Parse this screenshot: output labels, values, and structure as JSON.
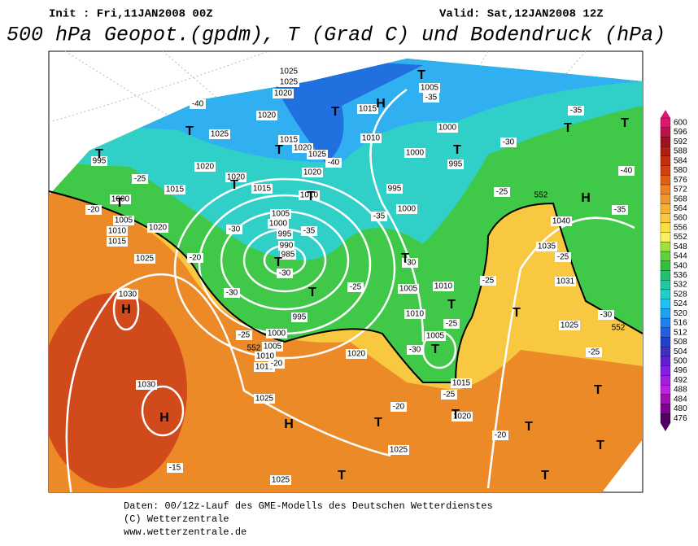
{
  "header": {
    "init": "Init : Fri,11JAN2008 00Z",
    "valid": "Valid: Sat,12JAN2008 12Z",
    "title": "500 hPa Geopot.(gpdm), T (Grad C) und Bodendruck (hPa)"
  },
  "footer": [
    "Daten: 00/12z-Lauf des GME-Modells des Deutschen Wetterdienstes",
    "(C) Wetterzentrale",
    "www.wetterzentrale.de"
  ],
  "colorbar": {
    "ticks": [
      600,
      596,
      592,
      588,
      584,
      580,
      576,
      572,
      568,
      564,
      560,
      556,
      552,
      548,
      544,
      540,
      536,
      532,
      528,
      524,
      520,
      516,
      512,
      508,
      504,
      500,
      496,
      492,
      488,
      484,
      480,
      476
    ],
    "colors": [
      "#e0156e",
      "#c0104a",
      "#a01020",
      "#b02010",
      "#c03010",
      "#d04010",
      "#e06010",
      "#f08020",
      "#f09830",
      "#f8b030",
      "#f8c840",
      "#f8e040",
      "#f8f060",
      "#a0e040",
      "#60d040",
      "#30c040",
      "#20c070",
      "#20c8a0",
      "#20d0c8",
      "#20c0f0",
      "#20a0f0",
      "#2080f0",
      "#2060e0",
      "#2040d0",
      "#4030c0",
      "#6020d0",
      "#8020e0",
      "#a020e0",
      "#c020e0",
      "#a010b0",
      "#800090",
      "#500060"
    ]
  },
  "map": {
    "isobar_labels": [
      "1025",
      "1025",
      "1020",
      "1020",
      "1025",
      "995",
      "1020",
      "1015",
      "1020",
      "1025",
      "1020",
      "1020",
      "1015",
      "1010",
      "1005",
      "1000",
      "995",
      "990",
      "985",
      "995",
      "1000",
      "1005",
      "1010",
      "1015",
      "1020",
      "1025",
      "1030",
      "1030",
      "1025",
      "1025",
      "1020",
      "1025",
      "1000",
      "1000",
      "995",
      "1005",
      "1010",
      "1015",
      "995",
      "1000",
      "1005",
      "1010",
      "1010",
      "1005",
      "1015",
      "1020",
      "1035",
      "1040",
      "1031",
      "1025",
      "1015",
      "1000",
      "1005",
      "1010",
      "1015"
    ],
    "temperature_labels": [
      "-40",
      "-40",
      "-35",
      "-35",
      "-30",
      "-25",
      "-20",
      "-25",
      "-40",
      "-35",
      "-30",
      "-35",
      "-35",
      "-30",
      "-30",
      "-30",
      "-25",
      "-20",
      "-25",
      "-25",
      "-30",
      "-25",
      "-25",
      "-30",
      "-20",
      "-25",
      "-20",
      "-15",
      "-20",
      "-25"
    ],
    "centers": [
      "H",
      "H",
      "H",
      "H",
      "H",
      "T",
      "T",
      "T",
      "T",
      "T",
      "T",
      "T",
      "T",
      "T",
      "T",
      "T",
      "T",
      "T",
      "T",
      "T",
      "T",
      "T",
      "T",
      "T",
      "T",
      "T",
      "T",
      "T",
      "T"
    ],
    "contour_labels": [
      "552",
      "552",
      "552"
    ]
  }
}
